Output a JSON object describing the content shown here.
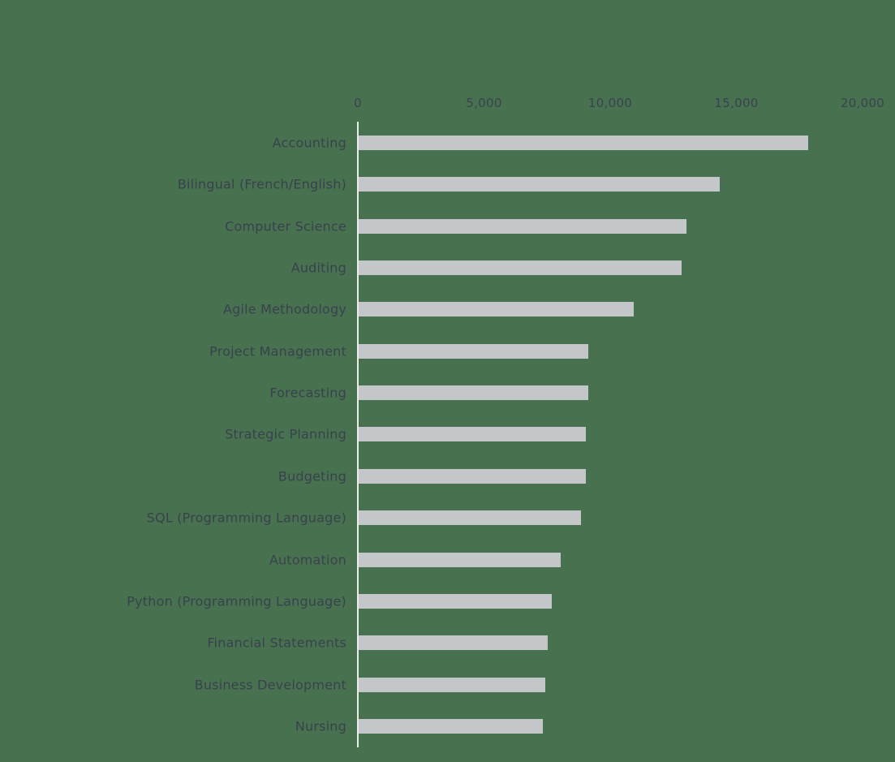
{
  "chart_data": {
    "type": "bar",
    "orientation": "horizontal",
    "title": "",
    "categories": [
      "Accounting",
      "Bilingual (French/English)",
      "Computer Science",
      "Auditing",
      "Agile Methodology",
      "Project Management",
      "Forecasting",
      "Strategic Planning",
      "Budgeting",
      "SQL (Programming Language)",
      "Automation",
      "Python (Programming Language)",
      "Financial Statements",
      "Business Development",
      "Nursing"
    ],
    "values": [
      17800,
      14300,
      13000,
      12800,
      10900,
      9100,
      9100,
      9000,
      9000,
      8800,
      8000,
      7650,
      7500,
      7400,
      7300
    ],
    "x_axis": {
      "range": [
        0,
        20000
      ],
      "ticks": [
        {
          "value": 0,
          "label": "0"
        },
        {
          "value": 5000,
          "label": "5,000"
        },
        {
          "value": 10000,
          "label": "10,000"
        },
        {
          "value": 15000,
          "label": "15,000"
        },
        {
          "value": 20000,
          "label": "20,000"
        }
      ],
      "position": "top"
    },
    "legend": "none",
    "grid": "off",
    "colors": {
      "background": "#48724f",
      "bar": "#c4c7ca",
      "tick_text": "#3a4250",
      "label_text": "#39414e",
      "axis_line": "#eaece8"
    }
  }
}
